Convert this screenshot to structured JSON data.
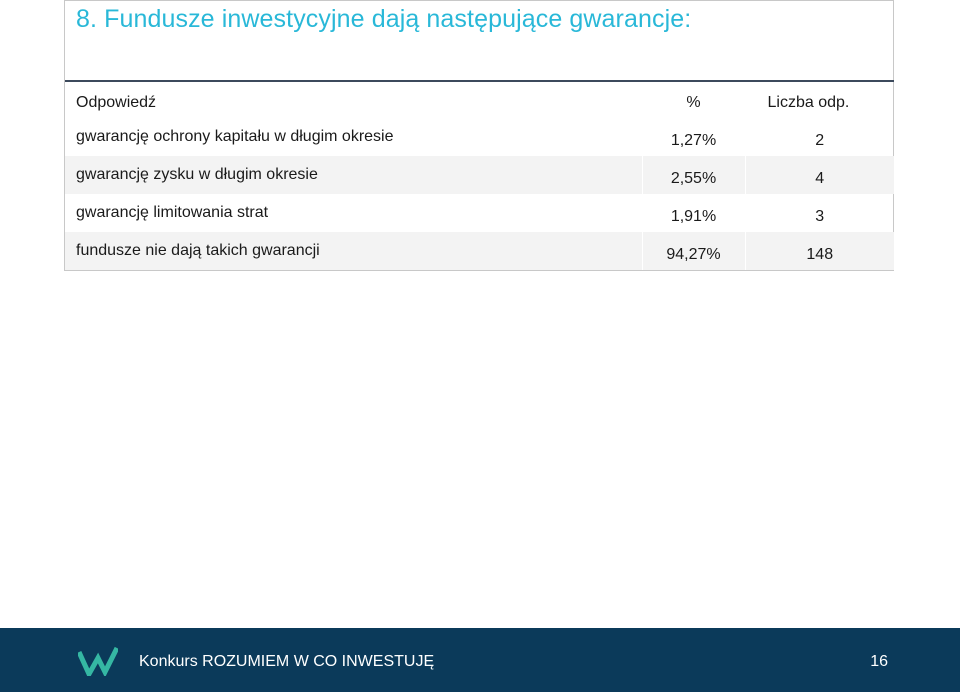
{
  "slide": {
    "title": "8. Fundusze inwestycyjne dają następujące gwarancje:"
  },
  "table": {
    "headers": {
      "answer": "Odpowiedź",
      "percent": "%",
      "count": "Liczba odp."
    },
    "rows": [
      {
        "answer": "gwarancję ochrony kapitału w długim okresie",
        "percent": "1,27%",
        "count": "2"
      },
      {
        "answer": "gwarancję zysku w długim okresie",
        "percent": "2,55%",
        "count": "4"
      },
      {
        "answer": "gwarancję limitowania strat",
        "percent": "1,91%",
        "count": "3"
      },
      {
        "answer": "fundusze nie dają takich gwarancji",
        "percent": "94,27%",
        "count": "148"
      }
    ]
  },
  "footer": {
    "text": "Konkurs ROZUMIEM W CO INWESTUJĘ",
    "page_number": "16",
    "logo_icon": "w-logo-icon",
    "background_color": "#0b3a5a",
    "logo_color": "#35b7a3"
  },
  "colors": {
    "title": "#29b8d8",
    "table_rule": "#3c4a5c",
    "row_alt": "#f3f3f3"
  }
}
